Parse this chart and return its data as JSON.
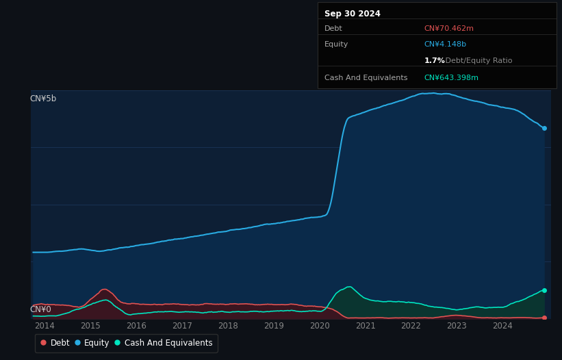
{
  "background_color": "#0d1117",
  "plot_bg_color": "#0d1f35",
  "equity_color": "#29ABE2",
  "debt_color": "#E05252",
  "cash_color": "#00E5C0",
  "equity_fill": "#0a2a4a",
  "debt_fill": "#3a1520",
  "cash_fill": "#0a3530",
  "legend_items": [
    "Debt",
    "Equity",
    "Cash And Equivalents"
  ],
  "y_label_top": "CN¥5b",
  "y_label_bottom": "CN¥0",
  "x_ticks": [
    "2014",
    "2015",
    "2016",
    "2017",
    "2018",
    "2019",
    "2020",
    "2021",
    "2022",
    "2023",
    "2024"
  ],
  "tooltip": {
    "date": "Sep 30 2024",
    "debt_label": "Debt",
    "debt_value": "CN¥70.462m",
    "debt_color": "#E05252",
    "equity_label": "Equity",
    "equity_value": "CN¥4.148b",
    "equity_color": "#29ABE2",
    "ratio_value": "1.7%",
    "ratio_text": " Debt/Equity Ratio",
    "cash_label": "Cash And Equivalents",
    "cash_value": "CN¥643.398m",
    "cash_color": "#00E5C0"
  },
  "ylim": [
    0,
    5000
  ],
  "xlim_start": 2013.7,
  "xlim_end": 2025.05
}
